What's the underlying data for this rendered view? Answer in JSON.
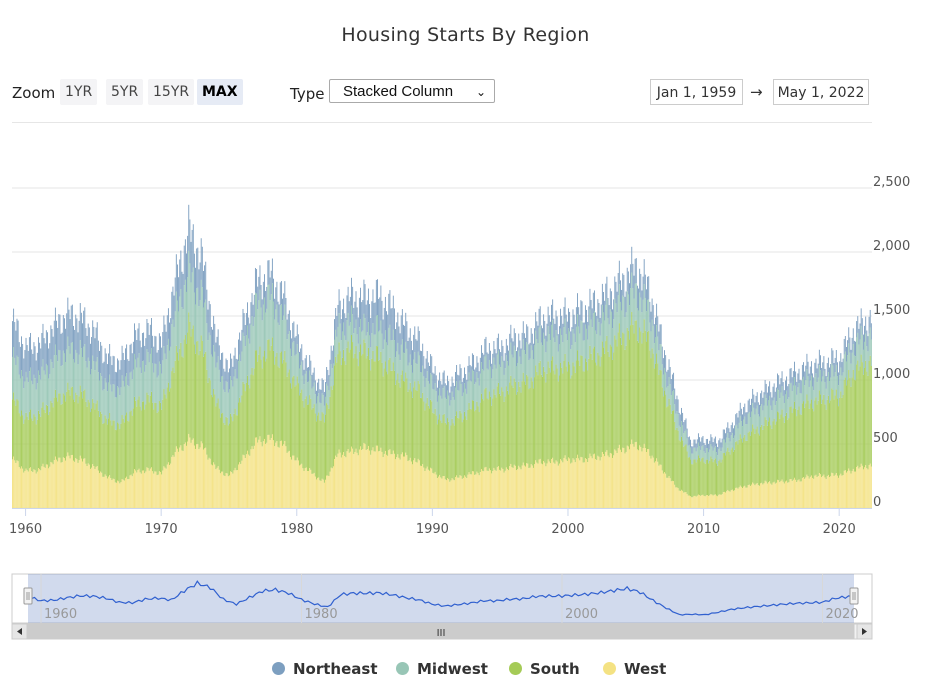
{
  "title": "Housing Starts By Region",
  "zoom": {
    "label": "Zoom",
    "buttons": [
      "1YR",
      "5YR",
      "15YR",
      "MAX"
    ],
    "active": "MAX"
  },
  "type": {
    "label": "Type",
    "selected": "Stacked Column"
  },
  "range": {
    "from": "Jan 1, 1959",
    "arrow": "→",
    "to": "May 1, 2022"
  },
  "legend": [
    {
      "name": "Northeast",
      "color": "#7d9fc0"
    },
    {
      "name": "Midwest",
      "color": "#98c6b6"
    },
    {
      "name": "South",
      "color": "#a5cb57"
    },
    {
      "name": "West",
      "color": "#f4e283"
    }
  ],
  "navigator": {
    "tick_labels": [
      "1960",
      "1980",
      "2000",
      "2020"
    ],
    "scroll_grip": "III"
  },
  "chart_data": {
    "type": "bar",
    "stacked": true,
    "title": "Housing Starts By Region",
    "x_range": [
      "1959-01",
      "2022-05"
    ],
    "ylim": [
      0,
      2500
    ],
    "y_ticks": [
      "0",
      "500",
      "1,000",
      "1,500",
      "2,000",
      "2,500"
    ],
    "x_ticks": [
      "1960",
      "1970",
      "1980",
      "1990",
      "2000",
      "2010",
      "2020"
    ],
    "grid": true,
    "legend_position": "bottom-center",
    "x": [
      1959,
      1960,
      1961,
      1962,
      1963,
      1964,
      1965,
      1966,
      1967,
      1968,
      1969,
      1970,
      1971,
      1972,
      1973,
      1974,
      1975,
      1976,
      1977,
      1978,
      1979,
      1980,
      1981,
      1982,
      1983,
      1984,
      1985,
      1986,
      1987,
      1988,
      1989,
      1990,
      1991,
      1992,
      1993,
      1994,
      1995,
      1996,
      1997,
      1998,
      1999,
      2000,
      2001,
      2002,
      2003,
      2004,
      2005,
      2006,
      2007,
      2008,
      2009,
      2010,
      2011,
      2012,
      2013,
      2014,
      2015,
      2016,
      2017,
      2018,
      2019,
      2020,
      2021,
      2022
    ],
    "series": [
      {
        "name": "West",
        "values": [
          380,
          290,
          300,
          360,
          400,
          380,
          320,
          240,
          200,
          280,
          300,
          270,
          430,
          530,
          480,
          310,
          250,
          380,
          520,
          540,
          490,
          360,
          280,
          200,
          420,
          440,
          470,
          450,
          420,
          400,
          350,
          280,
          220,
          240,
          270,
          300,
          300,
          320,
          330,
          360,
          360,
          380,
          380,
          400,
          420,
          460,
          500,
          430,
          290,
          160,
          90,
          100,
          100,
          140,
          170,
          190,
          200,
          210,
          220,
          250,
          250,
          260,
          300,
          330
        ]
      },
      {
        "name": "South",
        "values": [
          470,
          410,
          430,
          470,
          500,
          510,
          480,
          440,
          450,
          520,
          550,
          520,
          700,
          870,
          760,
          500,
          400,
          520,
          640,
          710,
          650,
          580,
          520,
          480,
          770,
          800,
          740,
          720,
          650,
          580,
          560,
          480,
          440,
          470,
          520,
          580,
          600,
          640,
          650,
          720,
          730,
          720,
          760,
          790,
          830,
          880,
          920,
          870,
          650,
          460,
          280,
          280,
          260,
          320,
          390,
          430,
          480,
          520,
          560,
          580,
          600,
          620,
          760,
          800
        ]
      },
      {
        "name": "Midwest",
        "values": [
          330,
          300,
          300,
          320,
          330,
          330,
          320,
          270,
          280,
          310,
          320,
          290,
          380,
          440,
          400,
          310,
          260,
          350,
          420,
          400,
          340,
          230,
          170,
          130,
          210,
          210,
          180,
          230,
          240,
          220,
          210,
          190,
          200,
          220,
          220,
          240,
          230,
          240,
          240,
          260,
          260,
          250,
          260,
          260,
          270,
          280,
          280,
          230,
          180,
          130,
          90,
          90,
          90,
          110,
          140,
          160,
          160,
          170,
          180,
          180,
          180,
          180,
          200,
          210
        ]
      },
      {
        "name": "Northeast",
        "values": [
          280,
          250,
          250,
          260,
          280,
          270,
          260,
          220,
          210,
          220,
          220,
          210,
          260,
          330,
          300,
          200,
          160,
          170,
          180,
          180,
          170,
          140,
          110,
          110,
          170,
          200,
          250,
          260,
          250,
          210,
          180,
          130,
          110,
          120,
          120,
          130,
          120,
          130,
          130,
          140,
          150,
          150,
          150,
          150,
          160,
          170,
          190,
          170,
          140,
          120,
          60,
          70,
          70,
          80,
          100,
          100,
          110,
          110,
          110,
          110,
          110,
          110,
          120,
          130
        ]
      }
    ]
  }
}
